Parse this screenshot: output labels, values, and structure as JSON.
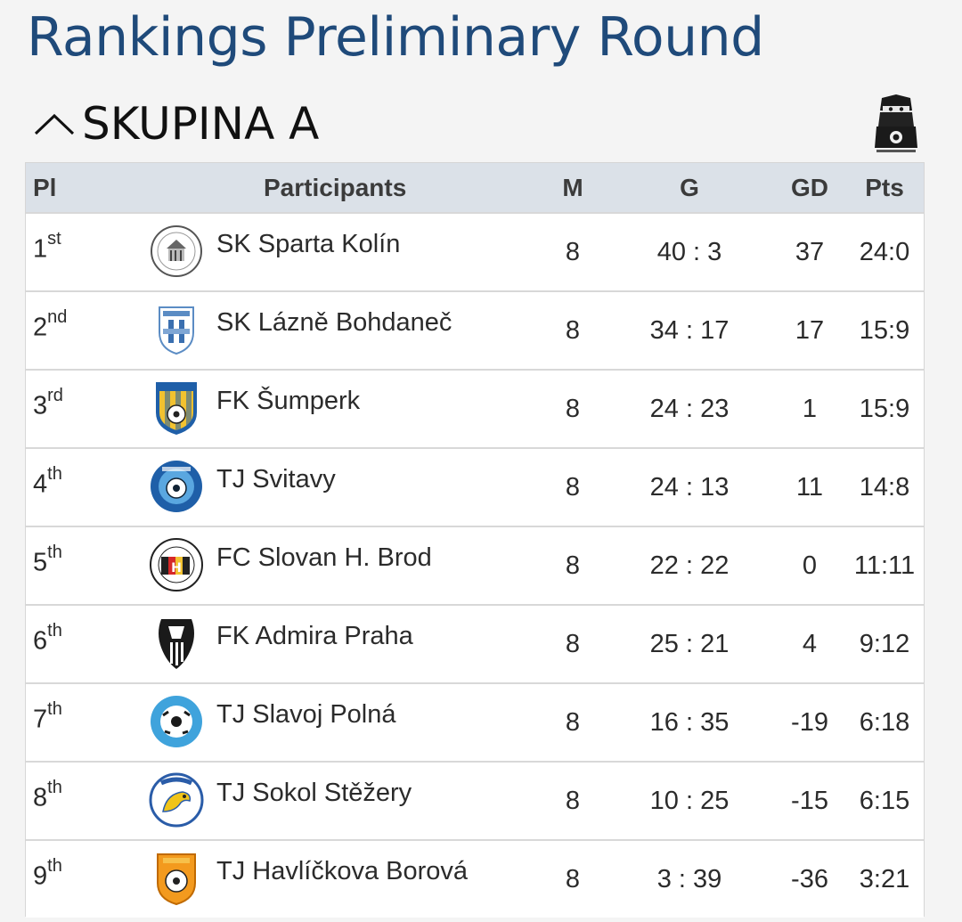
{
  "page": {
    "title": "Rankings Preliminary Round"
  },
  "group": {
    "name": "SKUPINA A"
  },
  "table": {
    "headers": {
      "pl": "Pl",
      "participants": "Participants",
      "m": "M",
      "g": "G",
      "gd": "GD",
      "pts": "Pts"
    },
    "rows": [
      {
        "rank": "1",
        "suffix": "st",
        "team": "SK Sparta Kolín",
        "m": "8",
        "g": "40 : 3",
        "gd": "37",
        "pts": "24:0",
        "logo": "sparta-kolin-logo"
      },
      {
        "rank": "2",
        "suffix": "nd",
        "team": "SK Lázně Bohdaneč",
        "m": "8",
        "g": "34 : 17",
        "gd": "17",
        "pts": "15:9",
        "logo": "lazne-bohdanec-logo"
      },
      {
        "rank": "3",
        "suffix": "rd",
        "team": "FK Šumperk",
        "m": "8",
        "g": "24 : 23",
        "gd": "1",
        "pts": "15:9",
        "logo": "sumperk-logo"
      },
      {
        "rank": "4",
        "suffix": "th",
        "team": "TJ Svitavy",
        "m": "8",
        "g": "24 : 13",
        "gd": "11",
        "pts": "14:8",
        "logo": "svitavy-logo"
      },
      {
        "rank": "5",
        "suffix": "th",
        "team": "FC Slovan H. Brod",
        "m": "8",
        "g": "22 : 22",
        "gd": "0",
        "pts": "11:11",
        "logo": "slovan-hbrod-logo"
      },
      {
        "rank": "6",
        "suffix": "th",
        "team": "FK Admira Praha",
        "m": "8",
        "g": "25 : 21",
        "gd": "4",
        "pts": "9:12",
        "logo": "admira-praha-logo"
      },
      {
        "rank": "7",
        "suffix": "th",
        "team": "TJ Slavoj Polná",
        "m": "8",
        "g": "16 : 35",
        "gd": "-19",
        "pts": "6:18",
        "logo": "slavoj-polna-logo"
      },
      {
        "rank": "8",
        "suffix": "th",
        "team": "TJ Sokol Stěžery",
        "m": "8",
        "g": "10 : 25",
        "gd": "-15",
        "pts": "6:15",
        "logo": "sokol-stezery-logo"
      },
      {
        "rank": "9",
        "suffix": "th",
        "team": "TJ Havlíčkova Borová",
        "m": "8",
        "g": "3 : 39",
        "gd": "-36",
        "pts": "3:21",
        "logo": "havlickova-borova-logo"
      }
    ]
  },
  "icons": {
    "collapse": "chevron-up-icon",
    "mascot": "ninja-mascot-icon"
  },
  "colors": {
    "title": "#1f4a7a",
    "header_bg": "#dbe1e8",
    "page_bg": "#f4f4f4"
  }
}
